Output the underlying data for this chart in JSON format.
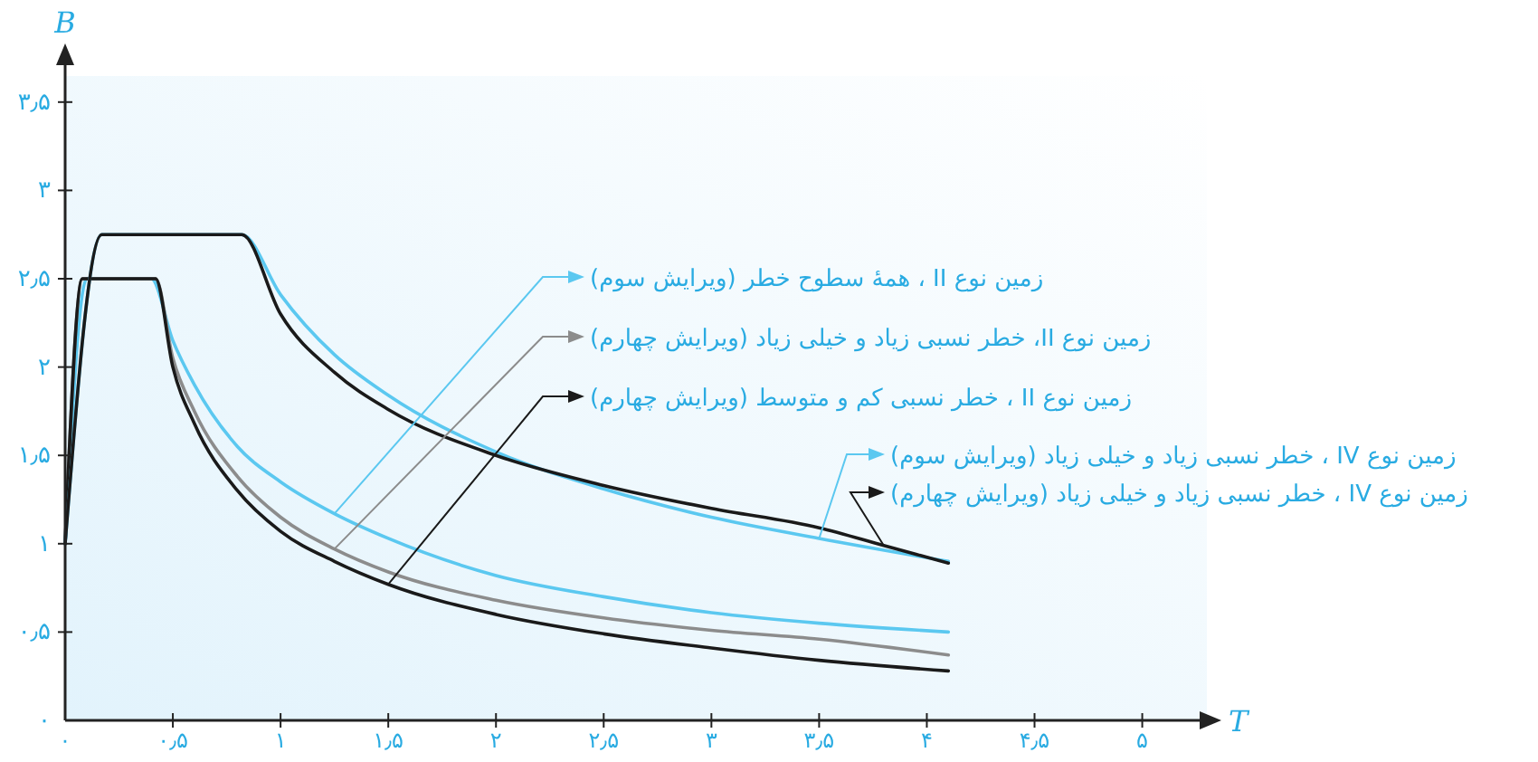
{
  "chart_data": {
    "type": "line",
    "xlabel": "T",
    "ylabel": "B",
    "xlim": [
      0,
      5.3
    ],
    "ylim": [
      0,
      3.75
    ],
    "xticks": [
      {
        "value": 0,
        "label": "۰"
      },
      {
        "value": 0.5,
        "label": "۰٫۵"
      },
      {
        "value": 1,
        "label": "۱"
      },
      {
        "value": 1.5,
        "label": "۱٫۵"
      },
      {
        "value": 2,
        "label": "۲"
      },
      {
        "value": 2.5,
        "label": "۲٫۵"
      },
      {
        "value": 3,
        "label": "۳"
      },
      {
        "value": 3.5,
        "label": "۳٫۵"
      },
      {
        "value": 4,
        "label": "۴"
      },
      {
        "value": 4.5,
        "label": "۴٫۵"
      },
      {
        "value": 5,
        "label": "۵"
      }
    ],
    "yticks": [
      {
        "value": 0,
        "label": "۰"
      },
      {
        "value": 0.5,
        "label": "۰٫۵"
      },
      {
        "value": 1,
        "label": "۱"
      },
      {
        "value": 1.5,
        "label": "۱٫۵"
      },
      {
        "value": 2,
        "label": "۲"
      },
      {
        "value": 2.5,
        "label": "۲٫۵"
      },
      {
        "value": 3,
        "label": "۳"
      },
      {
        "value": 3.5,
        "label": "۳٫۵"
      }
    ],
    "grid": false,
    "legend": "right",
    "marker": "none",
    "line_style": "solid",
    "series": [
      {
        "name": "زمین نوع II ، همهٔ سطوح خطر (ویرایش سوم)",
        "color": "#5bc8f0",
        "x": [
          0,
          0.1,
          0.4,
          0.5,
          0.6,
          0.8,
          1,
          1.25,
          1.5,
          2,
          2.5,
          3,
          3.5,
          4.1
        ],
        "values": [
          1,
          2.5,
          2.5,
          2.15,
          1.9,
          1.55,
          1.35,
          1.17,
          1.03,
          0.82,
          0.7,
          0.61,
          0.55,
          0.5
        ]
      },
      {
        "name": "زمین نوع II، خطر نسبی زیاد و خیلی زیاد (ویرایش چهارم)",
        "color": "#8c8c8c",
        "x": [
          0,
          0.08,
          0.42,
          0.5,
          0.6,
          0.8,
          1,
          1.25,
          1.5,
          2,
          2.5,
          3,
          3.5,
          4.1
        ],
        "values": [
          1,
          2.5,
          2.5,
          2.05,
          1.75,
          1.38,
          1.15,
          0.97,
          0.84,
          0.68,
          0.58,
          0.51,
          0.46,
          0.37
        ]
      },
      {
        "name": "زمین نوع II ، خطر نسبی کم و متوسط (ویرایش چهارم)",
        "color": "#1a1a1a",
        "x": [
          0,
          0.08,
          0.42,
          0.5,
          0.6,
          0.8,
          1,
          1.25,
          1.5,
          2,
          2.5,
          3,
          3.5,
          4.1
        ],
        "values": [
          1,
          2.5,
          2.5,
          2.0,
          1.68,
          1.3,
          1.07,
          0.9,
          0.77,
          0.6,
          0.49,
          0.41,
          0.34,
          0.28
        ]
      },
      {
        "name": "زمین نوع IV ، خطر نسبی زیاد و خیلی زیاد (ویرایش سوم)",
        "color": "#5bc8f0",
        "x": [
          0,
          0.17,
          0.82,
          1,
          1.25,
          1.5,
          2,
          2.5,
          3,
          3.5,
          4.1
        ],
        "values": [
          1,
          2.75,
          2.75,
          2.41,
          2.07,
          1.84,
          1.52,
          1.31,
          1.15,
          1.03,
          0.9
        ]
      },
      {
        "name": "زمین نوع IV ، خطر نسبی زیاد و خیلی زیاد (ویرایش چهارم)",
        "color": "#1a1a1a",
        "x": [
          0,
          0.17,
          0.82,
          1,
          1.25,
          1.5,
          2,
          2.5,
          3,
          3.5,
          3.8,
          4.1
        ],
        "values": [
          1,
          2.75,
          2.75,
          2.3,
          1.97,
          1.76,
          1.5,
          1.33,
          1.2,
          1.09,
          0.99,
          0.89
        ]
      }
    ]
  }
}
